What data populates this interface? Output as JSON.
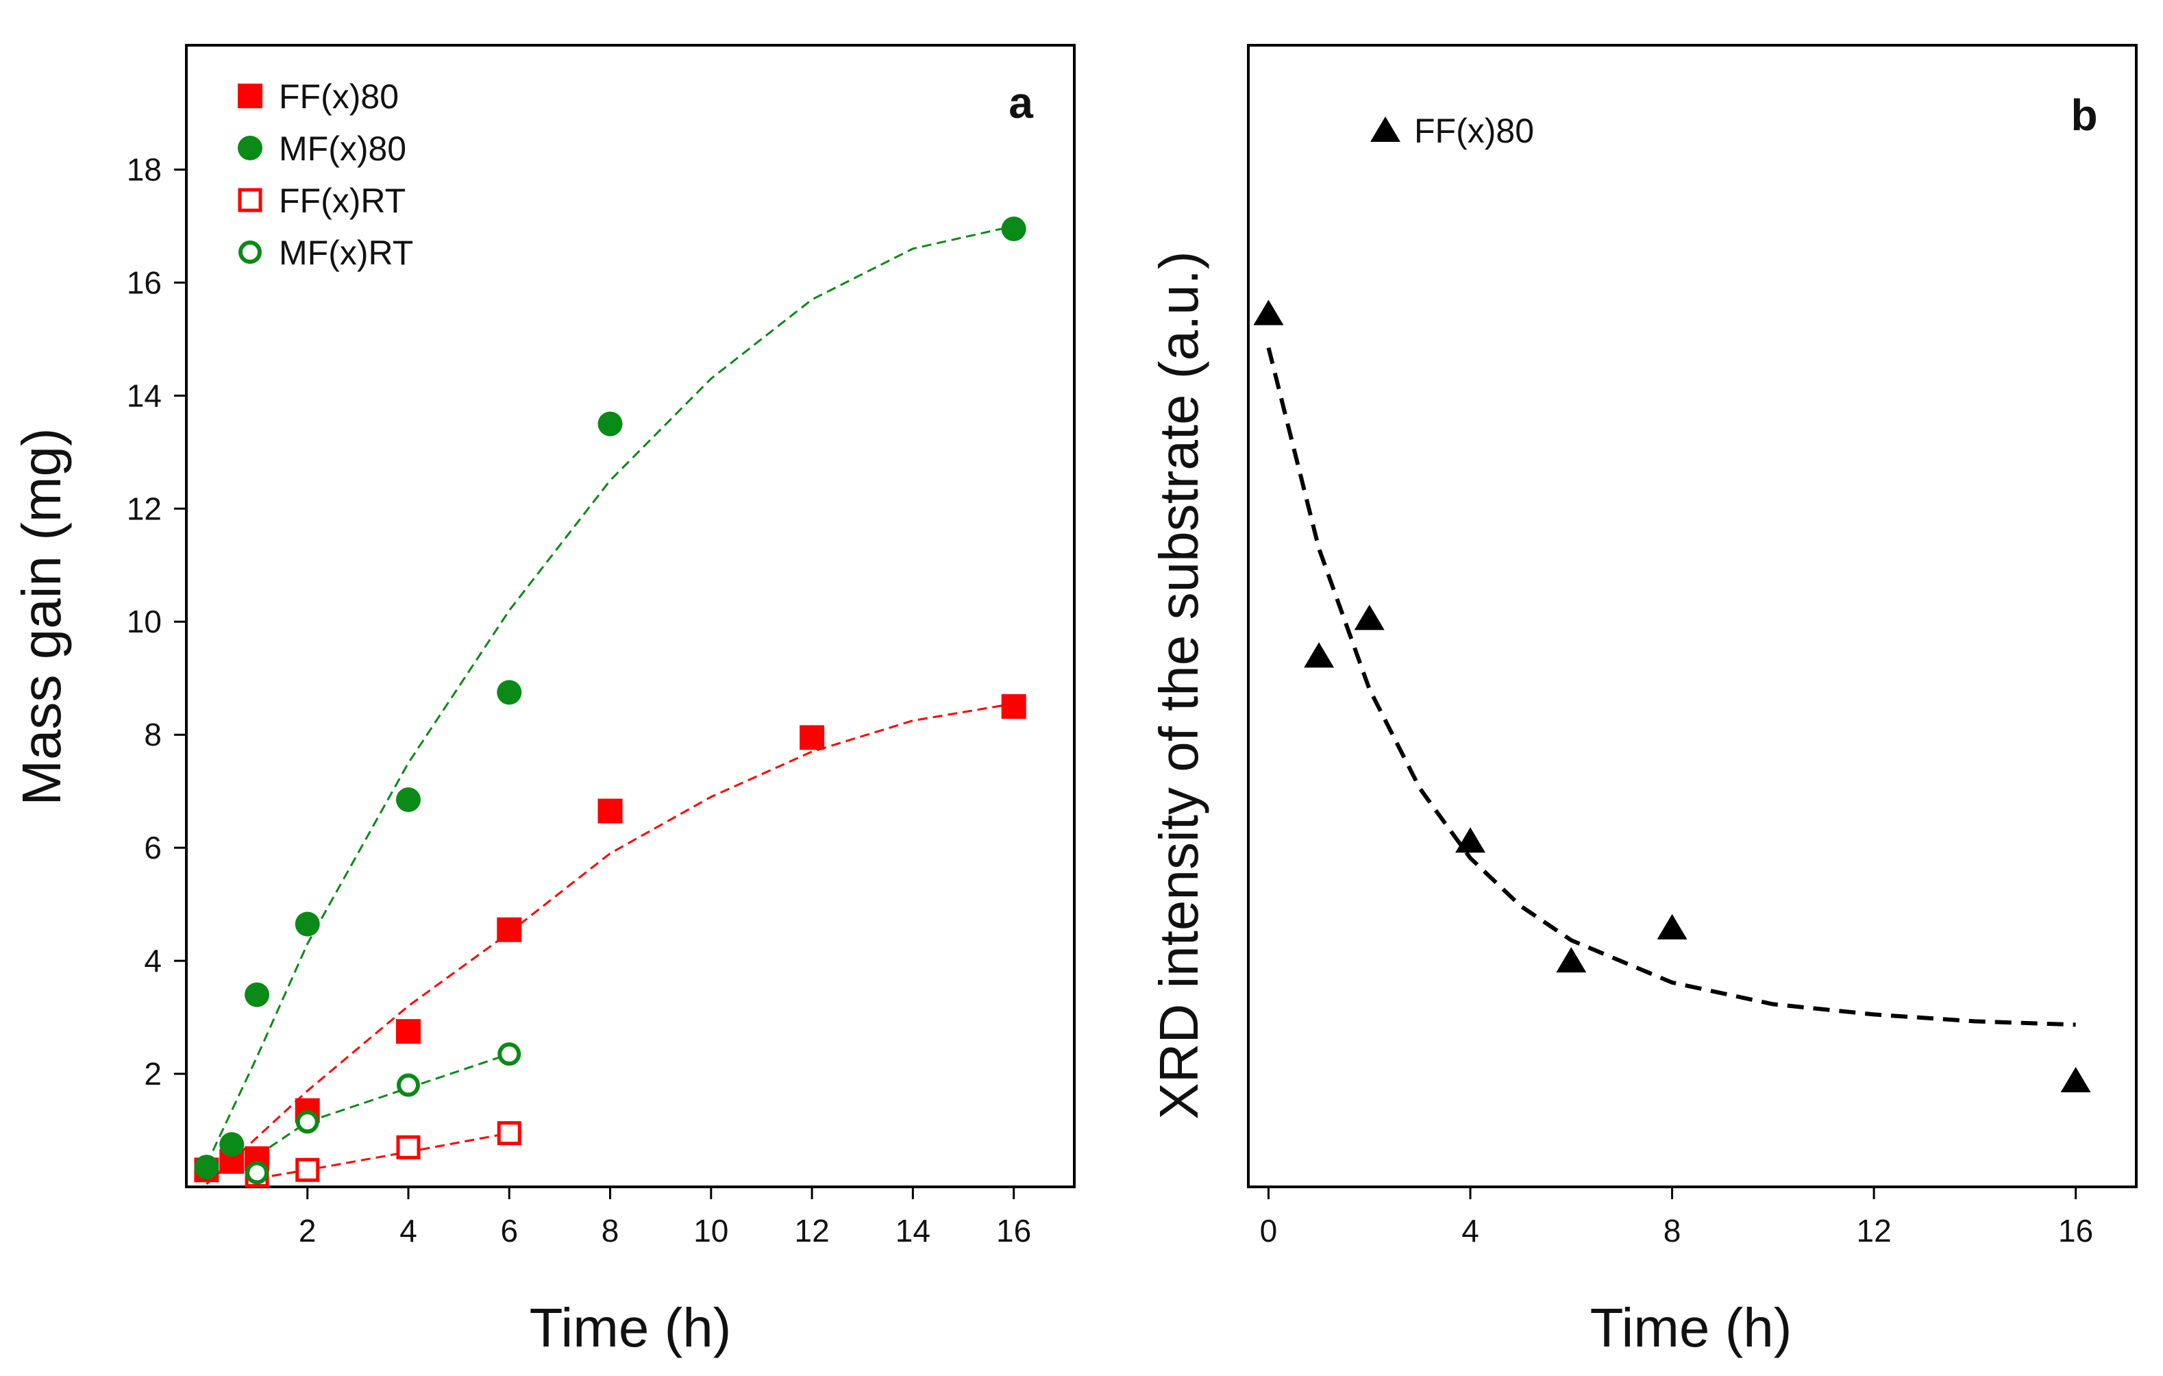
{
  "chart_data": [
    {
      "panel": "a",
      "type": "scatter",
      "xlabel": "Time (h)",
      "ylabel": "Mass gain (mg)",
      "xlim": [
        -0.4,
        17.2
      ],
      "ylim": [
        0,
        20.2
      ],
      "xticks": [
        2,
        4,
        6,
        8,
        10,
        12,
        14,
        16
      ],
      "yticks": [
        2,
        4,
        6,
        8,
        10,
        12,
        14,
        16,
        18
      ],
      "series": [
        {
          "name": "FF(x)80",
          "marker": "square-filled",
          "color": "#ff0000",
          "points": [
            [
              0,
              0.3
            ],
            [
              0.5,
              0.45
            ],
            [
              1,
              0.5
            ],
            [
              2,
              1.35
            ],
            [
              4,
              2.75
            ],
            [
              6,
              4.55
            ],
            [
              8,
              6.65
            ],
            [
              12,
              7.95
            ],
            [
              16,
              8.5
            ]
          ],
          "fit": [
            [
              0,
              0.05
            ],
            [
              2,
              1.7
            ],
            [
              4,
              3.2
            ],
            [
              6,
              4.5
            ],
            [
              8,
              5.9
            ],
            [
              10,
              6.9
            ],
            [
              12,
              7.7
            ],
            [
              14,
              8.25
            ],
            [
              16,
              8.55
            ]
          ]
        },
        {
          "name": "MF(x)80",
          "marker": "circle-filled",
          "color": "#0a8a16",
          "points": [
            [
              0,
              0.35
            ],
            [
              0.5,
              0.75
            ],
            [
              1,
              3.4
            ],
            [
              2,
              4.65
            ],
            [
              4,
              6.85
            ],
            [
              6,
              8.75
            ],
            [
              8,
              13.5
            ],
            [
              16,
              16.95
            ]
          ],
          "fit": [
            [
              0,
              0.4
            ],
            [
              1,
              2.3
            ],
            [
              2,
              4.3
            ],
            [
              4,
              7.5
            ],
            [
              6,
              10.2
            ],
            [
              8,
              12.5
            ],
            [
              10,
              14.3
            ],
            [
              12,
              15.7
            ],
            [
              14,
              16.6
            ],
            [
              16,
              17.0
            ]
          ]
        },
        {
          "name": "FF(x)RT",
          "marker": "square-open",
          "color": "#ff0000",
          "points": [
            [
              1,
              0.2
            ],
            [
              2,
              0.3
            ],
            [
              4,
              0.7
            ],
            [
              6,
              0.95
            ]
          ],
          "fit": [
            [
              1,
              0.15
            ],
            [
              2,
              0.3
            ],
            [
              4,
              0.62
            ],
            [
              6,
              0.95
            ]
          ]
        },
        {
          "name": "MF(x)RT",
          "marker": "circle-open",
          "color": "#0a8a16",
          "points": [
            [
              1,
              0.25
            ],
            [
              2,
              1.15
            ],
            [
              4,
              1.8
            ],
            [
              6,
              2.35
            ]
          ],
          "fit": [
            [
              1,
              0.55
            ],
            [
              2,
              1.15
            ],
            [
              4,
              1.75
            ],
            [
              6,
              2.35
            ]
          ]
        }
      ],
      "annotation": "a",
      "legend_position": "top-left"
    },
    {
      "panel": "b",
      "type": "scatter",
      "xlabel": "Time (h)",
      "ylabel": "XRD intensity of the substrate (a.u.)",
      "xlim": [
        -0.4,
        17.2
      ],
      "ylim": [
        0,
        100
      ],
      "xticks": [
        0,
        4,
        8,
        12,
        16
      ],
      "yticks": [],
      "series": [
        {
          "name": "FF(x)80",
          "marker": "triangle-filled",
          "color": "#000000",
          "points": [
            [
              0,
              76.5
            ],
            [
              1,
              46.5
            ],
            [
              2,
              49.8
            ],
            [
              4,
              30.3
            ],
            [
              6,
              19.8
            ],
            [
              8,
              22.7
            ],
            [
              16,
              9.3
            ]
          ],
          "fit": [
            [
              0,
              73.5
            ],
            [
              1,
              55.9
            ],
            [
              2,
              43.6
            ],
            [
              3,
              34.9
            ],
            [
              4,
              28.8
            ],
            [
              5,
              24.6
            ],
            [
              6,
              21.6
            ],
            [
              8,
              17.9
            ],
            [
              10,
              16.0
            ],
            [
              12,
              15.1
            ],
            [
              14,
              14.5
            ],
            [
              16,
              14.2
            ]
          ]
        }
      ],
      "annotation": "b",
      "legend_position": "top-left"
    }
  ]
}
